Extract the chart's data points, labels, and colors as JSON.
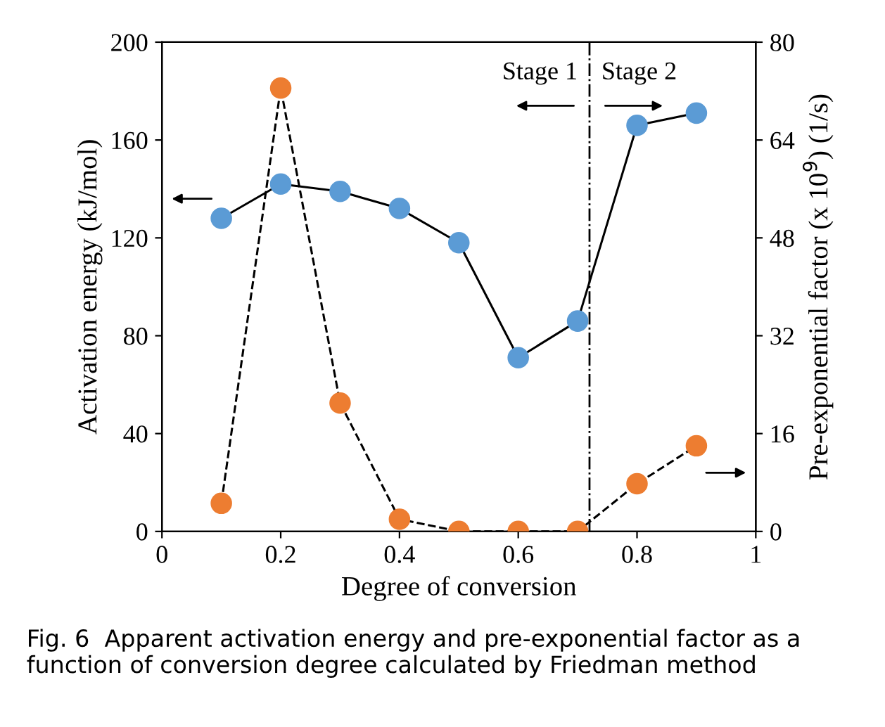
{
  "chart_data": {
    "type": "line",
    "xlabel": "Degree of conversion",
    "ylabel": "Activation energy (kJ/mol)",
    "y2label": "Pre-exponential factor (x 10$^{9}$) (1/s)",
    "x": [
      0.1,
      0.2,
      0.3,
      0.4,
      0.5,
      0.6,
      0.7,
      0.8,
      0.9
    ],
    "series": [
      {
        "color": "#5b9bd5",
        "values": [
          128,
          142,
          139,
          132,
          118,
          71,
          86,
          166,
          171
        ],
        "line_style": "solid"
      },
      {
        "color": "#ed7d31",
        "values": [
          4.6,
          72.5,
          21,
          2,
          0,
          0,
          0,
          7.8,
          14
        ],
        "axis": "y2",
        "line_style": "dashed"
      }
    ],
    "xlim": [
      0,
      1
    ],
    "xticks": [
      0,
      0.2,
      0.4,
      0.6,
      0.8,
      1
    ],
    "ylim": [
      0,
      200
    ],
    "yticks": [
      0,
      40,
      80,
      120,
      160,
      200
    ],
    "y2lim": [
      0,
      80
    ],
    "y2ticks": [
      0,
      16,
      32,
      48,
      64,
      80
    ],
    "ref_lines": [
      {
        "axis": "x",
        "value": 0.72,
        "line_style": "dashdot",
        "color": "#000000"
      }
    ],
    "annotations": [
      "Stage 1",
      "Stage 2",
      "Fig. 6  Apparent activation energy and pre-exponential factor as a function of conversion degree calculated by Friedman method"
    ],
    "marker": "circle",
    "grid": false
  }
}
